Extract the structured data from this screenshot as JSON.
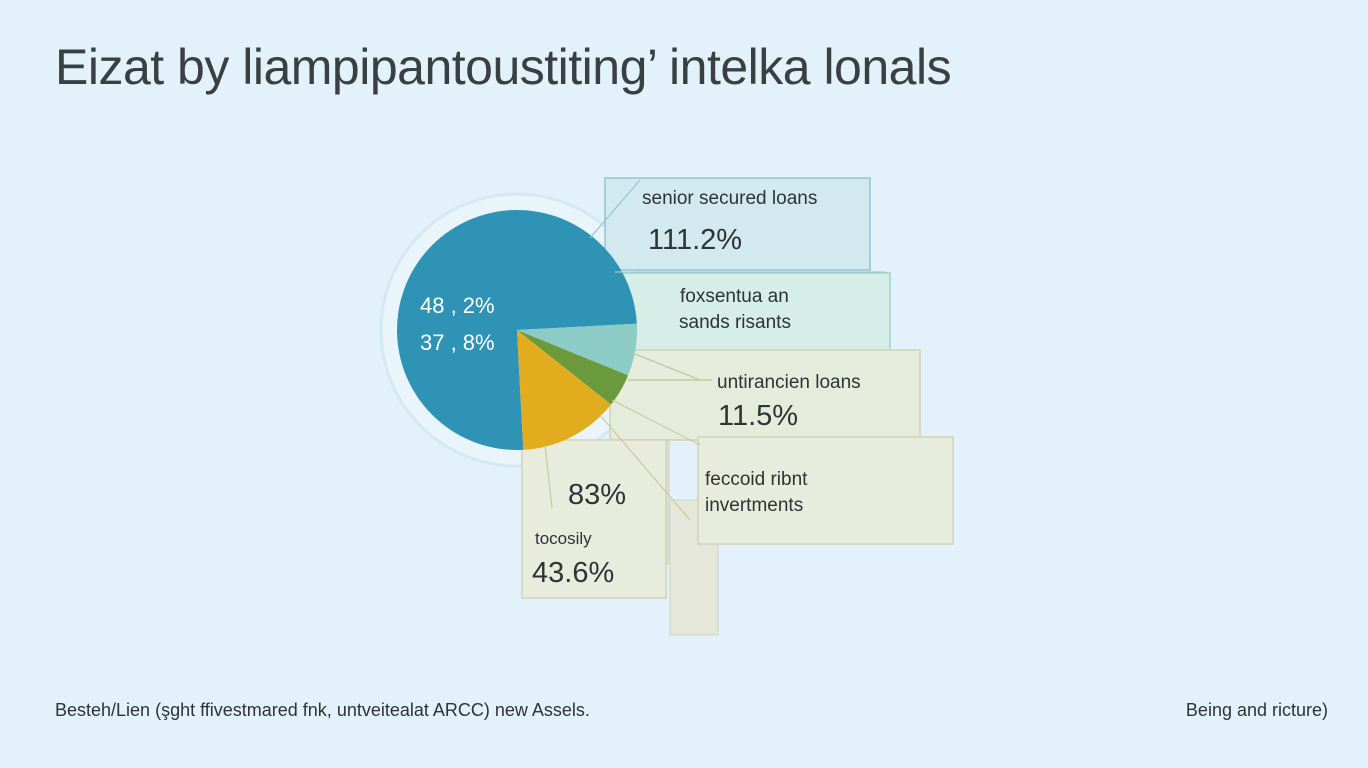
{
  "title": "Eizat by liampipantoustiting’ intelka lonals",
  "footer": {
    "left": "Besteh/Lien (şght ffivestmared  fnk, untveitealat ARCC) new Assels.",
    "right": "Being and ricture)"
  },
  "chart_data": {
    "type": "pie",
    "title": "Eizat by liampipantoustiting’ intelka lonals",
    "slices": [
      {
        "label": "",
        "value": 75.0,
        "color": "#2f93b5"
      },
      {
        "label": "foxsentua an sands risants",
        "value": 7.0,
        "color": "#8dcbc6"
      },
      {
        "label": "untirancien loans",
        "value": 4.5,
        "color": "#6a9a3b"
      },
      {
        "label": "tocosily",
        "value": 13.5,
        "color": "#e1ad1e"
      }
    ],
    "center_labels": [
      "48 , 2%",
      "37 , 8%"
    ],
    "callouts": [
      {
        "label": "senior secured loans",
        "value": "111.2%",
        "bg": "#d3e9f0",
        "border": "#8fc6d3"
      },
      {
        "label": "foxsentua an\nsands risants",
        "value": "",
        "bg": "#d6ede8",
        "border": "#9fd1cb"
      },
      {
        "label": "untirancien loans",
        "value": "11.5%",
        "bg": "#e6ecdc",
        "border": "#cdd3b3"
      },
      {
        "label": "feccoid ribnt\ninvertments",
        "value": "",
        "bg": "#e8ecdc",
        "border": "#d2d4b5"
      },
      {
        "label": "tocosily",
        "value": "43.6%",
        "bg": "#e8ecdc",
        "border": "#d2d4b5"
      },
      {
        "label": "",
        "value": "83%",
        "bg": "#e8ecdc",
        "border": "#d2d4b5"
      }
    ]
  }
}
